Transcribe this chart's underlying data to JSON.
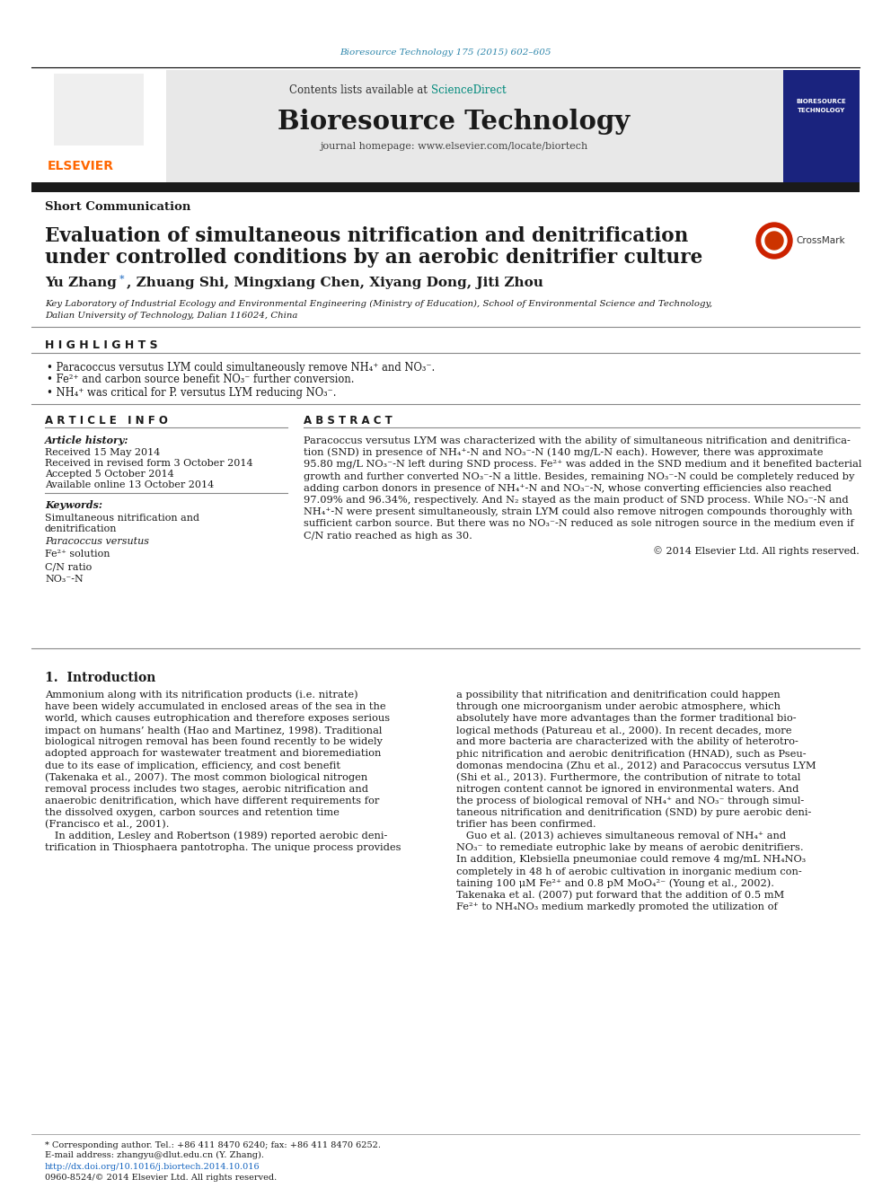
{
  "journal_ref": "Bioresource Technology 175 (2015) 602–605",
  "journal_title": "Bioresource Technology",
  "journal_homepage": "journal homepage: www.elsevier.com/locate/biortech",
  "contents_text": "Contents lists available at ",
  "science_direct": "ScienceDirect",
  "article_type": "Short Communication",
  "paper_title_line1": "Evaluation of simultaneous nitrification and denitrification",
  "paper_title_line2": "under controlled conditions by an aerobic denitrifier culture",
  "affiliation_line1": "Key Laboratory of Industrial Ecology and Environmental Engineering (Ministry of Education), School of Environmental Science and Technology,",
  "affiliation_line2": "Dalian University of Technology, Dalian 116024, China",
  "highlights_title": "H I G H L I G H T S",
  "highlight1": "• Paracoccus versutus LYM could simultaneously remove NH₄⁺ and NO₃⁻.",
  "highlight2": "• Fe²⁺ and carbon source benefit NO₃⁻ further conversion.",
  "highlight3": "• NH₄⁺ was critical for P. versutus LYM reducing NO₃⁻.",
  "article_info_title": "A R T I C L E   I N F O",
  "article_history_label": "Article history:",
  "received": "Received 15 May 2014",
  "received_revised": "Received in revised form 3 October 2014",
  "accepted": "Accepted 5 October 2014",
  "available": "Available online 13 October 2014",
  "keywords_label": "Keywords:",
  "keyword1": "Simultaneous nitrification and",
  "keyword2": "denitrification",
  "keyword3": "Paracoccus versutus",
  "keyword4": "Fe²⁺ solution",
  "keyword5": "C/N ratio",
  "keyword6": "NO₃⁻-N",
  "abstract_title": "A B S T R A C T",
  "abstract_lines": [
    "Paracoccus versutus LYM was characterized with the ability of simultaneous nitrification and denitrifica-",
    "tion (SND) in presence of NH₄⁺-N and NO₃⁻-N (140 mg/L-N each). However, there was approximate",
    "95.80 mg/L NO₃⁻-N left during SND process. Fe²⁺ was added in the SND medium and it benefited bacterial",
    "growth and further converted NO₃⁻-N a little. Besides, remaining NO₃⁻-N could be completely reduced by",
    "adding carbon donors in presence of NH₄⁺-N and NO₃⁻-N, whose converting efficiencies also reached",
    "97.09% and 96.34%, respectively. And N₂ stayed as the main product of SND process. While NO₃⁻-N and",
    "NH₄⁺-N were present simultaneously, strain LYM could also remove nitrogen compounds thoroughly with",
    "sufficient carbon source. But there was no NO₃⁻-N reduced as sole nitrogen source in the medium even if",
    "C/N ratio reached as high as 30."
  ],
  "copyright": "© 2014 Elsevier Ltd. All rights reserved.",
  "intro_title": "1.  Introduction",
  "intro_col1": [
    "Ammonium along with its nitrification products (i.e. nitrate)",
    "have been widely accumulated in enclosed areas of the sea in the",
    "world, which causes eutrophication and therefore exposes serious",
    "impact on humans’ health (Hao and Martinez, 1998). Traditional",
    "biological nitrogen removal has been found recently to be widely",
    "adopted approach for wastewater treatment and bioremediation",
    "due to its ease of implication, efficiency, and cost benefit",
    "(Takenaka et al., 2007). The most common biological nitrogen",
    "removal process includes two stages, aerobic nitrification and",
    "anaerobic denitrification, which have different requirements for",
    "the dissolved oxygen, carbon sources and retention time",
    "(Francisco et al., 2001).",
    "   In addition, Lesley and Robertson (1989) reported aerobic deni-",
    "trification in Thiosphaera pantotropha. The unique process provides"
  ],
  "intro_col2": [
    "a possibility that nitrification and denitrification could happen",
    "through one microorganism under aerobic atmosphere, which",
    "absolutely have more advantages than the former traditional bio-",
    "logical methods (Patureau et al., 2000). In recent decades, more",
    "and more bacteria are characterized with the ability of heterotro-",
    "phic nitrification and aerobic denitrification (HNAD), such as Pseu-",
    "domonas mendocina (Zhu et al., 2012) and Paracoccus versutus LYM",
    "(Shi et al., 2013). Furthermore, the contribution of nitrate to total",
    "nitrogen content cannot be ignored in environmental waters. And",
    "the process of biological removal of NH₄⁺ and NO₃⁻ through simul-",
    "taneous nitrification and denitrification (SND) by pure aerobic deni-",
    "trifier has been confirmed.",
    "   Guo et al. (2013) achieves simultaneous removal of NH₄⁺ and",
    "NO₃⁻ to remediate eutrophic lake by means of aerobic denitrifiers.",
    "In addition, Klebsiella pneumoniae could remove 4 mg/mL NH₄NO₃",
    "completely in 48 h of aerobic cultivation in inorganic medium con-",
    "taining 100 μM Fe²⁺ and 0.8 pM MoO₄²⁻ (Young et al., 2002).",
    "Takenaka et al. (2007) put forward that the addition of 0.5 mM",
    "Fe²⁺ to NH₄NO₃ medium markedly promoted the utilization of"
  ],
  "doi_text": "http://dx.doi.org/10.1016/j.biortech.2014.10.016",
  "issn_text": "0960-8524/© 2014 Elsevier Ltd. All rights reserved.",
  "footnote_text": "* Corresponding author. Tel.: +86 411 8470 6240; fax: +86 411 8470 6252.",
  "email_text": "E-mail address: zhangyu@dlut.edu.cn (Y. Zhang).",
  "colors": {
    "teal": "#2E86AB",
    "sciencedirect_teal": "#00897B",
    "header_bg": "#E8E8E8",
    "black_bar": "#1A1A1A",
    "elsevier_orange": "#FF6600",
    "link_blue": "#1565C0",
    "dark_text": "#1A1A1A",
    "author_star": "#1565C0"
  }
}
